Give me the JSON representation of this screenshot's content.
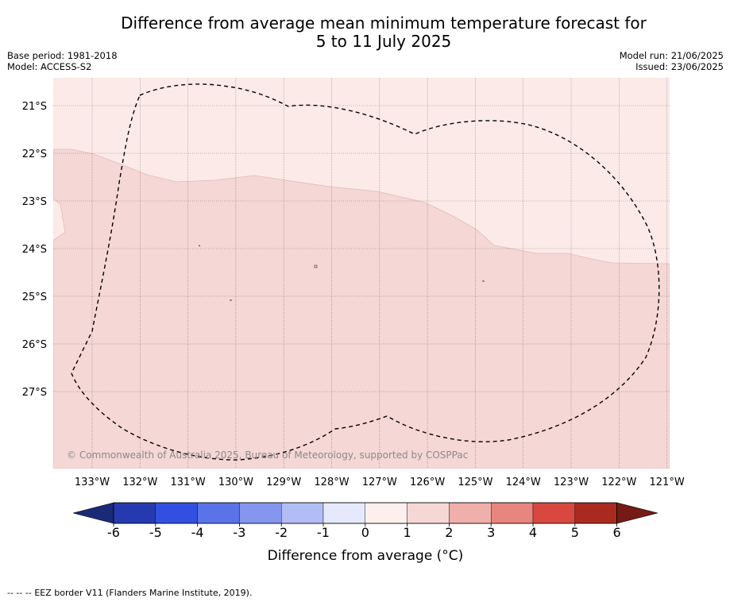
{
  "title": {
    "line1": "Difference from average mean minimum temperature forecast for",
    "line2": "5 to 11 July 2025"
  },
  "meta_left": {
    "base_period": "Base period: 1981-2018",
    "model": "Model: ACCESS-S2"
  },
  "meta_right": {
    "model_run": "Model run: 21/06/2025",
    "issued": "Issued: 23/06/2025"
  },
  "map": {
    "lat_labels": [
      "21°S",
      "22°S",
      "23°S",
      "24°S",
      "25°S",
      "26°S",
      "27°S"
    ],
    "lon_labels": [
      "133°W",
      "132°W",
      "131°W",
      "130°W",
      "129°W",
      "128°W",
      "127°W",
      "126°W",
      "125°W",
      "124°W",
      "123°W",
      "122°W",
      "121°W"
    ],
    "attribution": "© Commonwealth of Australia 2025, Bureau of Meteorology, supported by COSPPac",
    "regions": [
      {
        "name": "anomaly 0 to 1",
        "color": "#fbeae8"
      },
      {
        "name": "anomaly 1 to 2",
        "color": "#f5d7d5"
      }
    ]
  },
  "colorbar": {
    "ticks": [
      "-6",
      "-5",
      "-4",
      "-3",
      "-2",
      "-1",
      "0",
      "1",
      "2",
      "3",
      "4",
      "5",
      "6"
    ],
    "colors": [
      "#263ab0",
      "#3250e0",
      "#5b73e8",
      "#8596ee",
      "#b3bdf5",
      "#e6e9fb",
      "#fdefed",
      "#f5d7d5",
      "#efafaa",
      "#e8857f",
      "#d8483e",
      "#ab2a20"
    ],
    "min_color": "#1b2a78",
    "max_color": "#751a14",
    "label": "Difference from average (°C)"
  },
  "footer": {
    "legend_symbol": "-- -- --",
    "legend_text": "EEZ border V11 (Flanders Marine Institute, 2019)."
  }
}
